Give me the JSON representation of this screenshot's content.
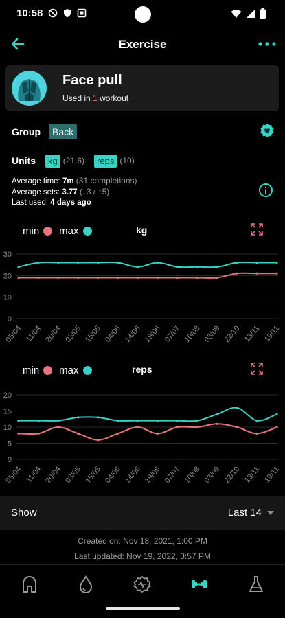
{
  "status_bar": {
    "time": "10:58"
  },
  "appbar": {
    "title": "Exercise"
  },
  "exercise": {
    "name": "Face pull",
    "used_prefix": "Used in",
    "used_count": "1",
    "used_suffix": "workout"
  },
  "group": {
    "label": "Group",
    "value": "Back"
  },
  "units": {
    "label": "Units",
    "items": [
      {
        "name": "kg",
        "value": "(21.6)"
      },
      {
        "name": "reps",
        "value": "(10)"
      }
    ]
  },
  "stats": {
    "avg_time_label": "Average time:",
    "avg_time_value": "7m",
    "avg_time_extra": "(31 completions)",
    "avg_sets_label": "Average sets:",
    "avg_sets_value": "3.77",
    "avg_sets_extra": "(↓3 / ↑5)",
    "last_used_label": "Last used:",
    "last_used_value": "4 days ago"
  },
  "colors": {
    "min": "#e8737e",
    "max": "#3bd2c6",
    "accent": "#3bd2c6"
  },
  "chart_data": [
    {
      "type": "line",
      "title": "kg",
      "legend": [
        "min",
        "max"
      ],
      "ylim": [
        0,
        30
      ],
      "yticks": [
        "0",
        "10",
        "20",
        "30"
      ],
      "categories": [
        "05/04",
        "11/04",
        "20/04",
        "03/05",
        "15/05",
        "04/06",
        "14/06",
        "19/06",
        "07/07",
        "10/08",
        "03/09",
        "22/10",
        "13/11",
        "19/11"
      ],
      "series": [
        {
          "name": "min",
          "values": [
            19,
            19,
            19,
            19,
            19,
            19,
            19,
            19,
            19,
            19,
            19,
            21,
            21,
            21
          ]
        },
        {
          "name": "max",
          "values": [
            24,
            26,
            26,
            26,
            26,
            26,
            24,
            26,
            24,
            24,
            24,
            26,
            26,
            26
          ]
        }
      ]
    },
    {
      "type": "line",
      "title": "reps",
      "legend": [
        "min",
        "max"
      ],
      "ylim": [
        0,
        20
      ],
      "yticks": [
        "0",
        "5",
        "10",
        "15",
        "20"
      ],
      "categories": [
        "05/04",
        "11/04",
        "20/04",
        "03/05",
        "15/05",
        "04/06",
        "14/06",
        "19/06",
        "07/07",
        "10/08",
        "03/09",
        "22/10",
        "13/11",
        "19/11"
      ],
      "series": [
        {
          "name": "min",
          "values": [
            8,
            8,
            10,
            8,
            6,
            8,
            10,
            8,
            10,
            10,
            11,
            10,
            8,
            10
          ]
        },
        {
          "name": "max",
          "values": [
            12,
            12,
            12,
            13,
            13,
            12,
            12,
            12,
            12,
            12,
            14,
            16,
            12,
            14
          ]
        }
      ]
    }
  ],
  "show": {
    "label": "Show",
    "value": "Last 14"
  },
  "meta": {
    "created": "Created on: Nov 18, 2021, 1:00 PM",
    "updated": "Last updated: Nov 19, 2022, 3:57 PM"
  },
  "nav": {
    "icons": [
      "home-icon",
      "water-drop-icon",
      "heart-pulse-icon",
      "dumbbell-icon",
      "flask-icon"
    ],
    "active": "dumbbell-icon"
  }
}
